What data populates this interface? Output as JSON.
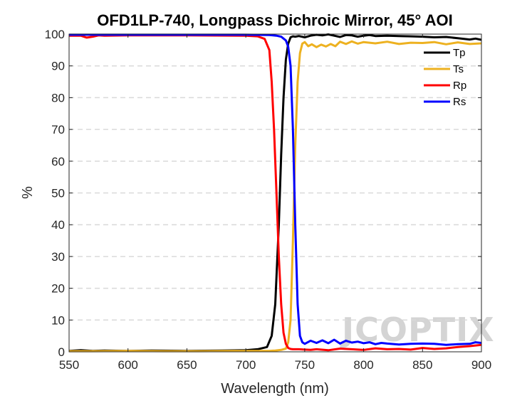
{
  "chart_data": {
    "type": "line",
    "title": "OFD1LP-740, Longpass Dichroic Mirror, 45° AOI",
    "xlabel": "Wavelength (nm)",
    "ylabel": "%",
    "xlim": [
      550,
      900
    ],
    "ylim": [
      0,
      100
    ],
    "xticks": [
      550,
      600,
      650,
      700,
      750,
      800,
      850,
      900
    ],
    "yticks": [
      0,
      10,
      20,
      30,
      40,
      50,
      60,
      70,
      80,
      90,
      100
    ],
    "grid": "horizontal dashed",
    "legend_position": "top-right",
    "watermark": "JCOPTIX",
    "series": [
      {
        "name": "Tp",
        "color": "#000000",
        "x": [
          550,
          560,
          570,
          580,
          600,
          620,
          650,
          680,
          700,
          710,
          718,
          722,
          725,
          728,
          730,
          732,
          734,
          736,
          738,
          740,
          742,
          745,
          750,
          755,
          760,
          765,
          770,
          775,
          780,
          785,
          790,
          795,
          800,
          805,
          810,
          820,
          830,
          840,
          850,
          860,
          870,
          880,
          890,
          895,
          900
        ],
        "values": [
          0.3,
          0.5,
          0.3,
          0.4,
          0.3,
          0.4,
          0.3,
          0.4,
          0.5,
          0.8,
          1.5,
          5,
          15,
          40,
          62,
          80,
          92,
          97,
          99,
          99.3,
          99.2,
          99.4,
          99,
          99.5,
          99.8,
          99.6,
          99.9,
          99.5,
          99.1,
          99.7,
          99.6,
          99.2,
          99.5,
          99.7,
          99.4,
          99.5,
          99.4,
          99.3,
          99.2,
          99,
          99.1,
          98.7,
          98.3,
          98.6,
          98.2
        ]
      },
      {
        "name": "Ts",
        "color": "#EDB120",
        "x": [
          550,
          570,
          600,
          630,
          660,
          690,
          710,
          720,
          725,
          730,
          734,
          736,
          738,
          740,
          742,
          744,
          746,
          748,
          750,
          753,
          756,
          760,
          764,
          768,
          772,
          776,
          780,
          785,
          790,
          795,
          800,
          810,
          820,
          830,
          840,
          850,
          860,
          870,
          880,
          890,
          900
        ],
        "values": [
          0.2,
          0.2,
          0.3,
          0.2,
          0.2,
          0.3,
          0.3,
          0.3,
          0.4,
          0.6,
          1,
          3,
          10,
          35,
          65,
          85,
          94,
          97,
          97.5,
          96.2,
          96.8,
          95.9,
          96.7,
          96.1,
          96.9,
          96.2,
          97.6,
          96.9,
          97.7,
          97,
          97.5,
          97.1,
          97.6,
          96.9,
          97.3,
          97.2,
          97.5,
          96.8,
          97.4,
          96.9,
          97.1
        ]
      },
      {
        "name": "Rp",
        "color": "#FF0000",
        "x": [
          550,
          560,
          565,
          570,
          575,
          580,
          600,
          650,
          700,
          710,
          716,
          720,
          722,
          724,
          726,
          728,
          730,
          732,
          734,
          736,
          738,
          740,
          745,
          750,
          755,
          760,
          770,
          780,
          790,
          800,
          810,
          820,
          830,
          840,
          850,
          860,
          870,
          880,
          890,
          900
        ],
        "values": [
          99.5,
          99.5,
          98.9,
          99.2,
          99.6,
          99.5,
          99.6,
          99.6,
          99.5,
          99.3,
          98.5,
          95,
          85,
          70,
          50,
          30,
          15,
          6,
          2.5,
          1.2,
          0.9,
          0.8,
          0.8,
          0.7,
          0.6,
          0.8,
          0.5,
          1.0,
          0.8,
          0.6,
          1.1,
          0.8,
          0.9,
          0.7,
          1.2,
          0.9,
          1.1,
          1.5,
          1.8,
          2.2
        ]
      },
      {
        "name": "Rs",
        "color": "#0000FF",
        "x": [
          550,
          600,
          650,
          700,
          720,
          726,
          730,
          734,
          736,
          738,
          740,
          742,
          744,
          746,
          748,
          750,
          755,
          760,
          765,
          770,
          775,
          780,
          785,
          790,
          795,
          800,
          805,
          810,
          815,
          820,
          830,
          840,
          850,
          860,
          870,
          880,
          890,
          895,
          900
        ],
        "values": [
          99.8,
          99.8,
          99.8,
          99.8,
          99.7,
          99.5,
          99.2,
          98,
          96,
          90,
          70,
          40,
          15,
          5,
          3,
          2.5,
          3.5,
          2.8,
          3.6,
          2.7,
          3.8,
          2.6,
          3.5,
          2.9,
          3.2,
          2.7,
          3.0,
          2.4,
          2.8,
          2.6,
          2.3,
          2.5,
          2.6,
          2.5,
          2.2,
          2.4,
          2.5,
          3.0,
          2.8
        ]
      }
    ]
  }
}
